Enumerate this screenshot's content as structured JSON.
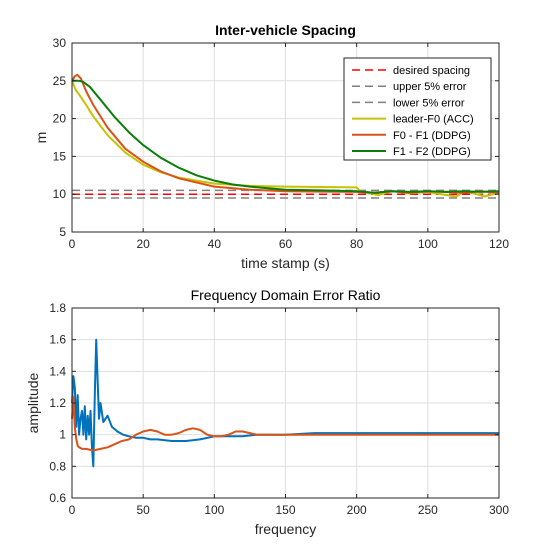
{
  "chart_data": [
    {
      "type": "line",
      "title": "Inter-vehicle Spacing",
      "xlabel": "time stamp (s)",
      "ylabel": "m",
      "xlim": [
        0,
        120
      ],
      "ylim": [
        5,
        30
      ],
      "xticks": [
        "0",
        "20",
        "40",
        "60",
        "80",
        "100",
        "120"
      ],
      "yticks": [
        "5",
        "10",
        "15",
        "20",
        "25",
        "30"
      ],
      "grid": true,
      "legend_position": "top-right",
      "series": [
        {
          "name": "desired spacing",
          "color": "#ff0000",
          "style": "dashed",
          "x": [
            0,
            120
          ],
          "y": [
            10,
            10
          ]
        },
        {
          "name": "upper 5% error",
          "color": "#808080",
          "style": "dashed",
          "x": [
            0,
            120
          ],
          "y": [
            10.5,
            10.5
          ]
        },
        {
          "name": "lower 5% error",
          "color": "#808080",
          "style": "dashed",
          "x": [
            0,
            120
          ],
          "y": [
            9.5,
            9.5
          ]
        },
        {
          "name": "leader-F0 (ACC)",
          "color": "#c8c000",
          "style": "solid",
          "x": [
            0,
            1,
            2,
            4,
            6,
            10,
            15,
            20,
            25,
            30,
            40,
            50,
            60,
            70,
            80,
            81,
            83,
            86,
            90,
            95,
            100,
            105,
            108,
            110,
            113,
            116,
            120
          ],
          "y": [
            25,
            23.8,
            23.2,
            21.8,
            20.3,
            17.8,
            15.5,
            13.9,
            12.9,
            12.2,
            11.4,
            11.1,
            11.0,
            10.95,
            10.9,
            10.4,
            10.2,
            9.9,
            10.4,
            10.1,
            10.3,
            9.9,
            9.7,
            10.3,
            10.1,
            9.7,
            10.2
          ]
        },
        {
          "name": "F0 - F1 (DDPG)",
          "color": "#d95319",
          "style": "solid",
          "x": [
            0,
            0.8,
            1.5,
            2.5,
            4,
            6,
            10,
            15,
            20,
            25,
            30,
            40,
            50,
            60,
            70,
            80,
            85,
            90,
            95,
            100,
            105,
            110,
            115,
            120
          ],
          "y": [
            25,
            25.6,
            25.8,
            25.3,
            23.6,
            21.8,
            18.8,
            16.0,
            14.3,
            13.0,
            12.1,
            11.0,
            10.6,
            10.4,
            10.35,
            10.3,
            10.2,
            10.4,
            10.2,
            10.4,
            10.3,
            10.2,
            10.4,
            10.2
          ]
        },
        {
          "name": "F1 - F2 (DDPG)",
          "color": "#0b7d0b",
          "style": "solid",
          "x": [
            0,
            1,
            2,
            3,
            5,
            8,
            12,
            16,
            20,
            25,
            30,
            35,
            40,
            45,
            50,
            55,
            60,
            70,
            80,
            85,
            90,
            95,
            100,
            105,
            110,
            115,
            120
          ],
          "y": [
            25,
            25,
            25,
            24.9,
            24.2,
            22.5,
            20.2,
            18.2,
            16.5,
            14.8,
            13.5,
            12.5,
            11.8,
            11.3,
            11.0,
            10.8,
            10.6,
            10.5,
            10.4,
            10.2,
            10.4,
            10.3,
            10.4,
            10.3,
            10.4,
            10.3,
            10.4
          ]
        }
      ]
    },
    {
      "type": "line",
      "title": "Frequency Domain Error Ratio",
      "xlabel": "frequency",
      "ylabel": "amplitude",
      "xlim": [
        0,
        300
      ],
      "ylim": [
        0.6,
        1.8
      ],
      "xticks": [
        "0",
        "50",
        "100",
        "150",
        "200",
        "250",
        "300"
      ],
      "yticks": [
        "0.6",
        "0.8",
        "1",
        "1.2",
        "1.4",
        "1.6",
        "1.8"
      ],
      "grid": true,
      "series": [
        {
          "color": "#0072bd",
          "style": "solid",
          "x": [
            0,
            1,
            2,
            3,
            4,
            5,
            6,
            7,
            8,
            9,
            10,
            11,
            12,
            13,
            14,
            15,
            16,
            17,
            18,
            19,
            20,
            22,
            25,
            28,
            32,
            36,
            40,
            45,
            50,
            55,
            60,
            70,
            80,
            90,
            100,
            110,
            120,
            130,
            140,
            150,
            170,
            200,
            250,
            300
          ],
          "y": [
            1.2,
            1.37,
            1.3,
            1.05,
            1.25,
            1.0,
            1.1,
            1.15,
            1.0,
            1.18,
            0.97,
            1.12,
            1.0,
            1.15,
            0.93,
            0.8,
            1.25,
            1.6,
            1.35,
            1.1,
            1.2,
            1.08,
            1.12,
            1.05,
            1.02,
            1.0,
            0.99,
            0.98,
            0.98,
            0.97,
            0.97,
            0.96,
            0.96,
            0.97,
            0.99,
            0.99,
            0.99,
            1.0,
            1.0,
            1.0,
            1.01,
            1.01,
            1.01,
            1.01
          ]
        },
        {
          "color": "#d95319",
          "style": "solid",
          "x": [
            0,
            1,
            2,
            3,
            4,
            5,
            7,
            10,
            15,
            20,
            25,
            30,
            35,
            40,
            45,
            50,
            55,
            60,
            65,
            70,
            75,
            80,
            85,
            90,
            95,
            100,
            105,
            110,
            115,
            120,
            125,
            130,
            140,
            150,
            175,
            200,
            250,
            300
          ],
          "y": [
            1.1,
            1.24,
            1.05,
            0.97,
            0.93,
            0.92,
            0.91,
            0.91,
            0.9,
            0.91,
            0.92,
            0.94,
            0.96,
            0.97,
            1.0,
            1.02,
            1.03,
            1.02,
            1.0,
            1.0,
            1.01,
            1.03,
            1.04,
            1.03,
            1.0,
            0.99,
            0.99,
            1.0,
            1.02,
            1.02,
            1.01,
            1.0,
            1.0,
            1.0,
            1.0,
            1.0,
            1.0,
            1.0
          ]
        }
      ]
    }
  ]
}
